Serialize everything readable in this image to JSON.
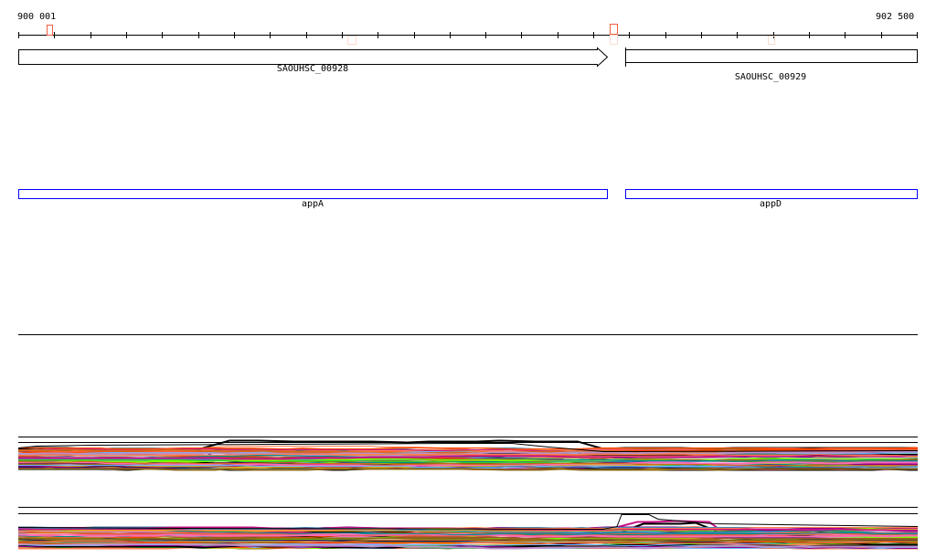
{
  "ruler": {
    "start_label": "900 001",
    "end_label": "902 500",
    "start": 900001,
    "end": 902500,
    "tick_interval": 100
  },
  "genes": [
    {
      "name": "SAOUHSC_00928",
      "start": 900001,
      "end": 901640,
      "strand": "+"
    },
    {
      "name": "SAOUHSC_00929",
      "start": 901690,
      "end": 902500,
      "strand": "-"
    }
  ],
  "features": [
    {
      "name": "appA",
      "color": "#0000ff"
    },
    {
      "name": "appD",
      "color": "#0000ff"
    }
  ],
  "markers_color": "#f06040",
  "markers_pale_color": "#fadcd0",
  "track_colors": [
    "#000000",
    "#1a1a5a",
    "#8b008b",
    "#c71585",
    "#6cb4ff",
    "#4682b4",
    "#ba8fc8",
    "#ff7f50",
    "#d2691e",
    "#8b6914",
    "#6b8e23",
    "#7cfc00",
    "#32cd32",
    "#ff4500",
    "#e06040",
    "#a0522d",
    "#b0b0b0",
    "#ff69b4",
    "#008b8b",
    "#daa520"
  ]
}
